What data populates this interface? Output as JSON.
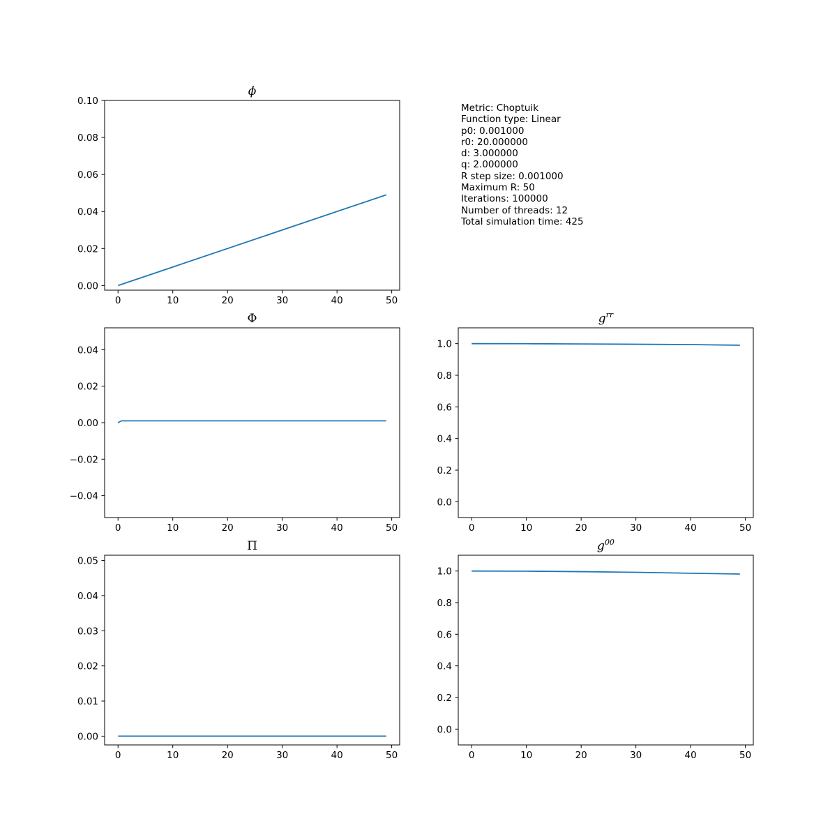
{
  "info_lines": [
    "Metric: Choptuik",
    "Function type: Linear",
    "p0: 0.001000",
    "r0: 20.000000",
    "d: 3.000000",
    "q: 2.000000",
    "R step size: 0.001000",
    "Maximum R: 50",
    "Iterations: 100000",
    "Number of threads: 12",
    "Total simulation time: 425"
  ],
  "line_color": "#1f77b4",
  "chart_data": [
    {
      "type": "line",
      "title": "ϕ",
      "title_style": "italic",
      "xlim": [
        -2.45,
        51.45
      ],
      "ylim": [
        -0.0025,
        0.1
      ],
      "xticks": [
        0,
        10,
        20,
        30,
        40,
        50
      ],
      "xtick_labels": [
        "0",
        "10",
        "20",
        "30",
        "40",
        "50"
      ],
      "yticks": [
        0,
        0.02,
        0.04,
        0.06,
        0.08,
        0.1
      ],
      "ytick_labels": [
        "0.00",
        "0.02",
        "0.04",
        "0.06",
        "0.08",
        "0.10"
      ],
      "series": [
        {
          "x": [
            0,
            49
          ],
          "y": [
            0,
            0.049
          ]
        }
      ]
    },
    {
      "type": "line",
      "title": "Φ",
      "title_style": "normal",
      "xlim": [
        -2.45,
        51.45
      ],
      "ylim": [
        -0.052,
        0.052
      ],
      "xticks": [
        0,
        10,
        20,
        30,
        40,
        50
      ],
      "xtick_labels": [
        "0",
        "10",
        "20",
        "30",
        "40",
        "50"
      ],
      "yticks": [
        -0.04,
        -0.02,
        0,
        0.02,
        0.04
      ],
      "ytick_labels": [
        "−0.04",
        "−0.02",
        "0.00",
        "0.02",
        "0.04"
      ],
      "series": [
        {
          "x": [
            0,
            0.6,
            1,
            49
          ],
          "y": [
            0,
            0.001,
            0.001,
            0.001
          ]
        }
      ]
    },
    {
      "type": "line",
      "title": "g",
      "title_sup": "rr",
      "title_style": "italic",
      "xlim": [
        -2.45,
        51.45
      ],
      "ylim": [
        -0.1,
        1.1
      ],
      "xticks": [
        0,
        10,
        20,
        30,
        40,
        50
      ],
      "xtick_labels": [
        "0",
        "10",
        "20",
        "30",
        "40",
        "50"
      ],
      "yticks": [
        0,
        0.2,
        0.4,
        0.6,
        0.8,
        1.0
      ],
      "ytick_labels": [
        "0.0",
        "0.2",
        "0.4",
        "0.6",
        "0.8",
        "1.0"
      ],
      "series": [
        {
          "x": [
            0,
            10,
            20,
            30,
            40,
            49
          ],
          "y": [
            1.0,
            0.9995,
            0.998,
            0.996,
            0.994,
            0.99
          ]
        }
      ]
    },
    {
      "type": "line",
      "title": "Π",
      "title_style": "normal",
      "xlim": [
        -2.45,
        51.45
      ],
      "ylim": [
        -0.0025,
        0.0515
      ],
      "xticks": [
        0,
        10,
        20,
        30,
        40,
        50
      ],
      "xtick_labels": [
        "0",
        "10",
        "20",
        "30",
        "40",
        "50"
      ],
      "yticks": [
        0,
        0.01,
        0.02,
        0.03,
        0.04,
        0.05
      ],
      "ytick_labels": [
        "0.00",
        "0.01",
        "0.02",
        "0.03",
        "0.04",
        "0.05"
      ],
      "series": [
        {
          "x": [
            0,
            49
          ],
          "y": [
            0,
            0
          ]
        }
      ]
    },
    {
      "type": "line",
      "title": "g",
      "title_sup": "00",
      "title_style": "italic",
      "xlim": [
        -2.45,
        51.45
      ],
      "ylim": [
        -0.1,
        1.1
      ],
      "xticks": [
        0,
        10,
        20,
        30,
        40,
        50
      ],
      "xtick_labels": [
        "0",
        "10",
        "20",
        "30",
        "40",
        "50"
      ],
      "yticks": [
        0,
        0.2,
        0.4,
        0.6,
        0.8,
        1.0
      ],
      "ytick_labels": [
        "0.0",
        "0.2",
        "0.4",
        "0.6",
        "0.8",
        "1.0"
      ],
      "series": [
        {
          "x": [
            0,
            10,
            20,
            30,
            40,
            49
          ],
          "y": [
            1.0,
            0.999,
            0.996,
            0.992,
            0.986,
            0.981
          ]
        }
      ]
    }
  ]
}
